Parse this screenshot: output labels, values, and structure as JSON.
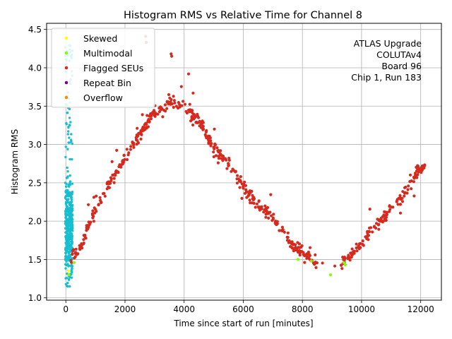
{
  "chart_data": {
    "type": "scatter",
    "title": "Histogram RMS vs Relative Time for Channel 8",
    "xlabel": "Time since start of run [minutes]",
    "ylabel": "Histogram RMS",
    "xlim": [
      -650,
      12700
    ],
    "ylim": [
      0.97,
      4.58
    ],
    "xticks": [
      0,
      2000,
      4000,
      6000,
      8000,
      10000,
      12000
    ],
    "xtick_labels": [
      "0",
      "2000",
      "4000",
      "6000",
      "8000",
      "10000",
      "12000"
    ],
    "yticks": [
      1.0,
      1.5,
      2.0,
      2.5,
      3.0,
      3.5,
      4.0,
      4.5
    ],
    "ytick_labels": [
      "1.0",
      "1.5",
      "2.0",
      "2.5",
      "3.0",
      "3.5",
      "4.0",
      "4.5"
    ],
    "grid": true,
    "legend_placement": "top-left",
    "legend": [
      {
        "label": "Skewed",
        "color": "#ffff00"
      },
      {
        "label": "Multimodal",
        "color": "#7fff00"
      },
      {
        "label": "Flagged SEUs",
        "color": "#d62a1e"
      },
      {
        "label": "Repeat Bin",
        "color": "#800080"
      },
      {
        "label": "Overflow",
        "color": "#ff8c00"
      }
    ],
    "annotation": [
      "ATLAS Upgrade",
      "COLUTAv4",
      "Board 96",
      "Chip 1, Run 183"
    ],
    "series": [
      {
        "name": "Flagged SEUs",
        "color": "#d62a1e",
        "shape": "cosine trend",
        "x_range": [
          150,
          12150
        ],
        "approx_points": [
          [
            200,
            1.55
          ],
          [
            500,
            1.65
          ],
          [
            1000,
            2.15
          ],
          [
            1500,
            2.5
          ],
          [
            2000,
            2.85
          ],
          [
            2500,
            3.15
          ],
          [
            3000,
            3.4
          ],
          [
            3500,
            3.55
          ],
          [
            4000,
            3.5
          ],
          [
            4500,
            3.3
          ],
          [
            5000,
            2.95
          ],
          [
            5500,
            2.75
          ],
          [
            6000,
            2.45
          ],
          [
            6500,
            2.2
          ],
          [
            7000,
            2.05
          ],
          [
            7500,
            1.75
          ],
          [
            8000,
            1.6
          ],
          [
            8500,
            1.45
          ],
          [
            9000,
            1.4
          ],
          [
            9500,
            1.5
          ],
          [
            10000,
            1.7
          ],
          [
            10500,
            1.95
          ],
          [
            11000,
            2.15
          ],
          [
            11500,
            2.4
          ],
          [
            12000,
            2.7
          ]
        ]
      },
      {
        "name": "Cyan cluster (unlabeled)",
        "color": "#17becf",
        "x_range": [
          -20,
          230
        ],
        "y_range": [
          1.15,
          4.3
        ]
      },
      {
        "name": "Multimodal",
        "color": "#7fff00",
        "approx_points": [
          [
            100,
            1.3
          ],
          [
            280,
            1.46
          ],
          [
            7850,
            1.5
          ],
          [
            8300,
            1.48
          ],
          [
            8950,
            1.3
          ],
          [
            9400,
            1.46
          ],
          [
            9450,
            1.43
          ]
        ]
      },
      {
        "name": "Skewed",
        "color": "#ffff00",
        "approx_points": [
          [
            90,
            1.35
          ],
          [
            110,
            3.5
          ]
        ]
      }
    ]
  }
}
